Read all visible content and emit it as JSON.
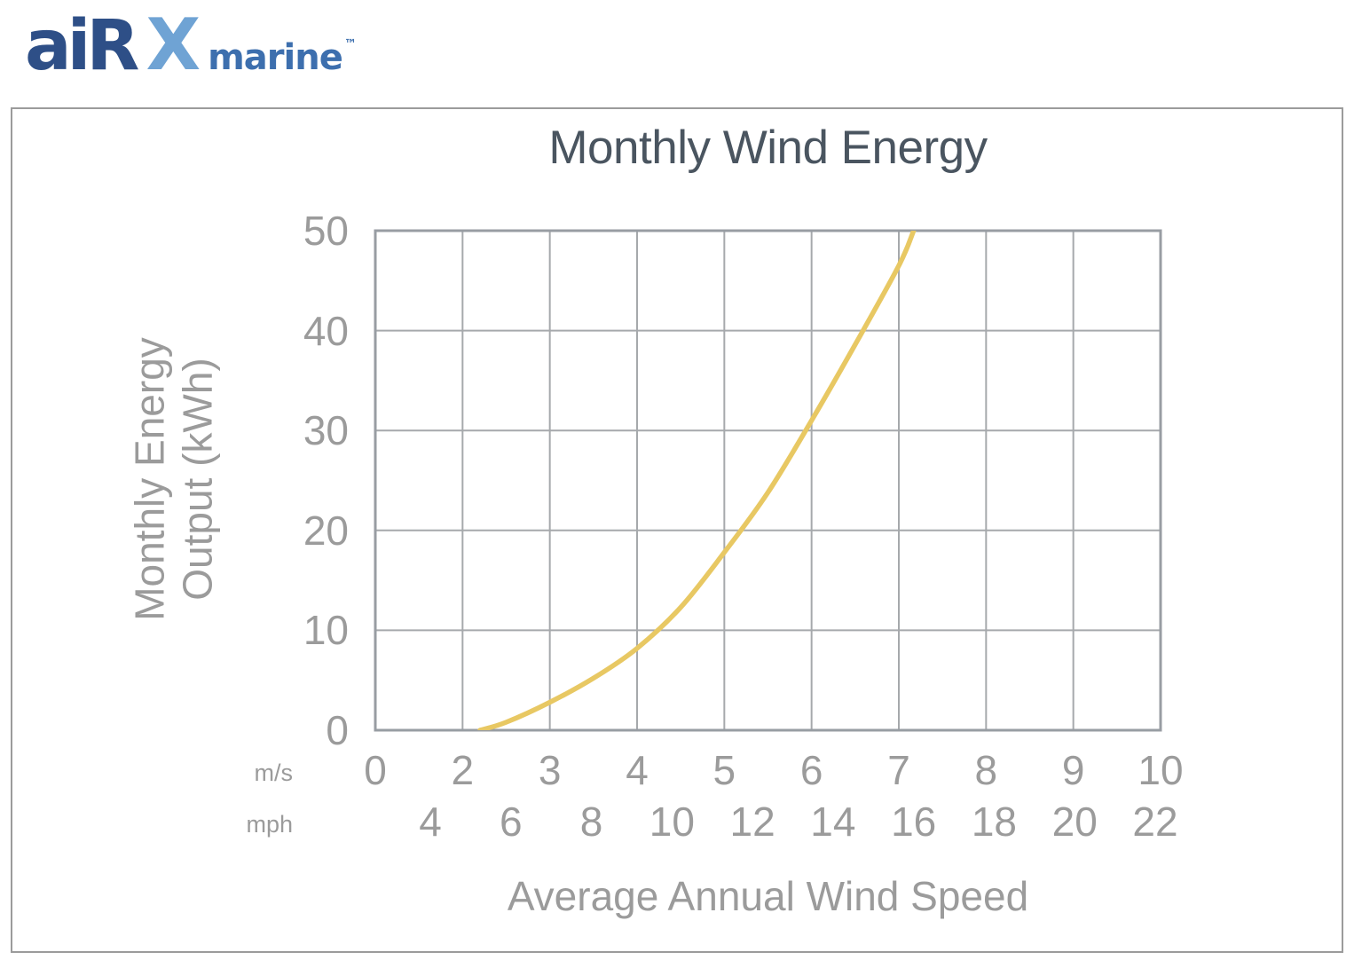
{
  "logo": {
    "air": "aiR",
    "x": "X",
    "marine": "marine",
    "tm": "™"
  },
  "colors": {
    "logo_air": "#2e4f87",
    "logo_x": "#6fa3d4",
    "logo_marine": "#3d6fae",
    "title": "#4a5560",
    "axis_text": "#9b9b9b",
    "grid": "#a6a9ac",
    "plot_border": "#989da3",
    "panel_border": "#9b9b9b",
    "curve": "#e8c863"
  },
  "chart_data": {
    "type": "line",
    "title": "Monthly Wind Energy",
    "xlabel": "Average Annual Wind Speed",
    "ylabel_lines": [
      "Monthly Energy",
      "Output (kWh)"
    ],
    "grid": true,
    "legend": "none",
    "ylim": [
      0,
      50
    ],
    "yticks": [
      0,
      10,
      20,
      30,
      40,
      50
    ],
    "x_units": [
      {
        "label": "m/s",
        "ticks": [
          0,
          2,
          3,
          4,
          5,
          6,
          7,
          8,
          9,
          10
        ]
      },
      {
        "label": "mph",
        "ticks": [
          4,
          6,
          8,
          10,
          12,
          14,
          16,
          18,
          20,
          22
        ]
      }
    ],
    "x_axis_note": "m/s ticks 2-10 equally spaced one gridline apart; 0 at plot origin",
    "series": [
      {
        "name": "AIR X Marine monthly energy output",
        "color": "#e8c863",
        "points_ms_kwh": [
          [
            2.2,
            0
          ],
          [
            2.5,
            0.8
          ],
          [
            3,
            2.8
          ],
          [
            3.5,
            5.2
          ],
          [
            4,
            8.2
          ],
          [
            4.5,
            12.3
          ],
          [
            5,
            17.8
          ],
          [
            5.5,
            23.8
          ],
          [
            6,
            31
          ],
          [
            6.5,
            38.6
          ],
          [
            7,
            46.5
          ],
          [
            7.17,
            50
          ]
        ]
      }
    ]
  }
}
